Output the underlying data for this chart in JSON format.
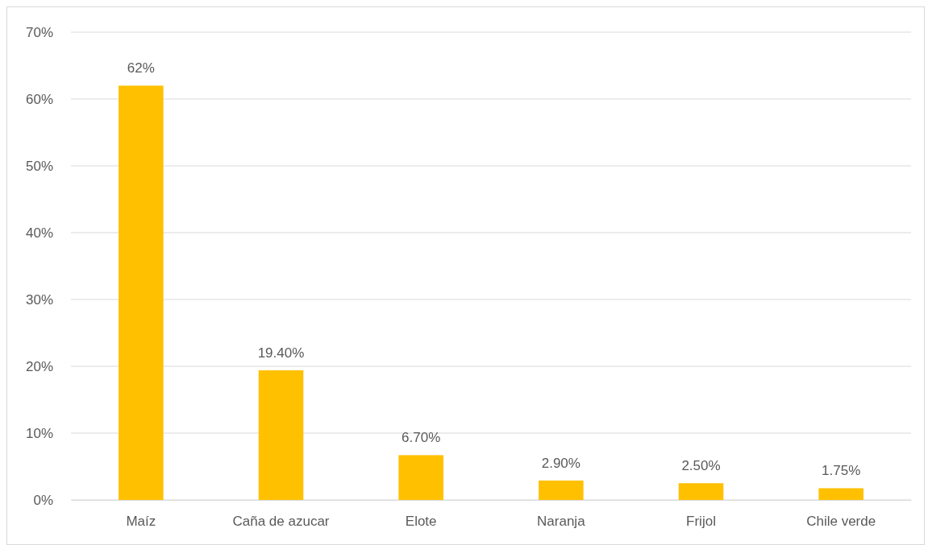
{
  "chart_data": {
    "type": "bar",
    "categories": [
      "Maíz",
      "Caña de azucar",
      "Elote",
      "Naranja",
      "Frijol",
      "Chile verde"
    ],
    "values": [
      62,
      19.4,
      6.7,
      2.9,
      2.5,
      1.75
    ],
    "value_labels": [
      "62%",
      "19.40%",
      "6.70%",
      "2.90%",
      "2.50%",
      "1.75%"
    ],
    "color": "#ffc000",
    "ylim": [
      0,
      70
    ],
    "yticks": [
      {
        "value": 0,
        "label": "0%"
      },
      {
        "value": 10,
        "label": "10%"
      },
      {
        "value": 20,
        "label": "20%"
      },
      {
        "value": 30,
        "label": "30%"
      },
      {
        "value": 40,
        "label": "40%"
      },
      {
        "value": 50,
        "label": "50%"
      },
      {
        "value": 60,
        "label": "60%"
      },
      {
        "value": 70,
        "label": "70%"
      }
    ],
    "grid": "y"
  }
}
